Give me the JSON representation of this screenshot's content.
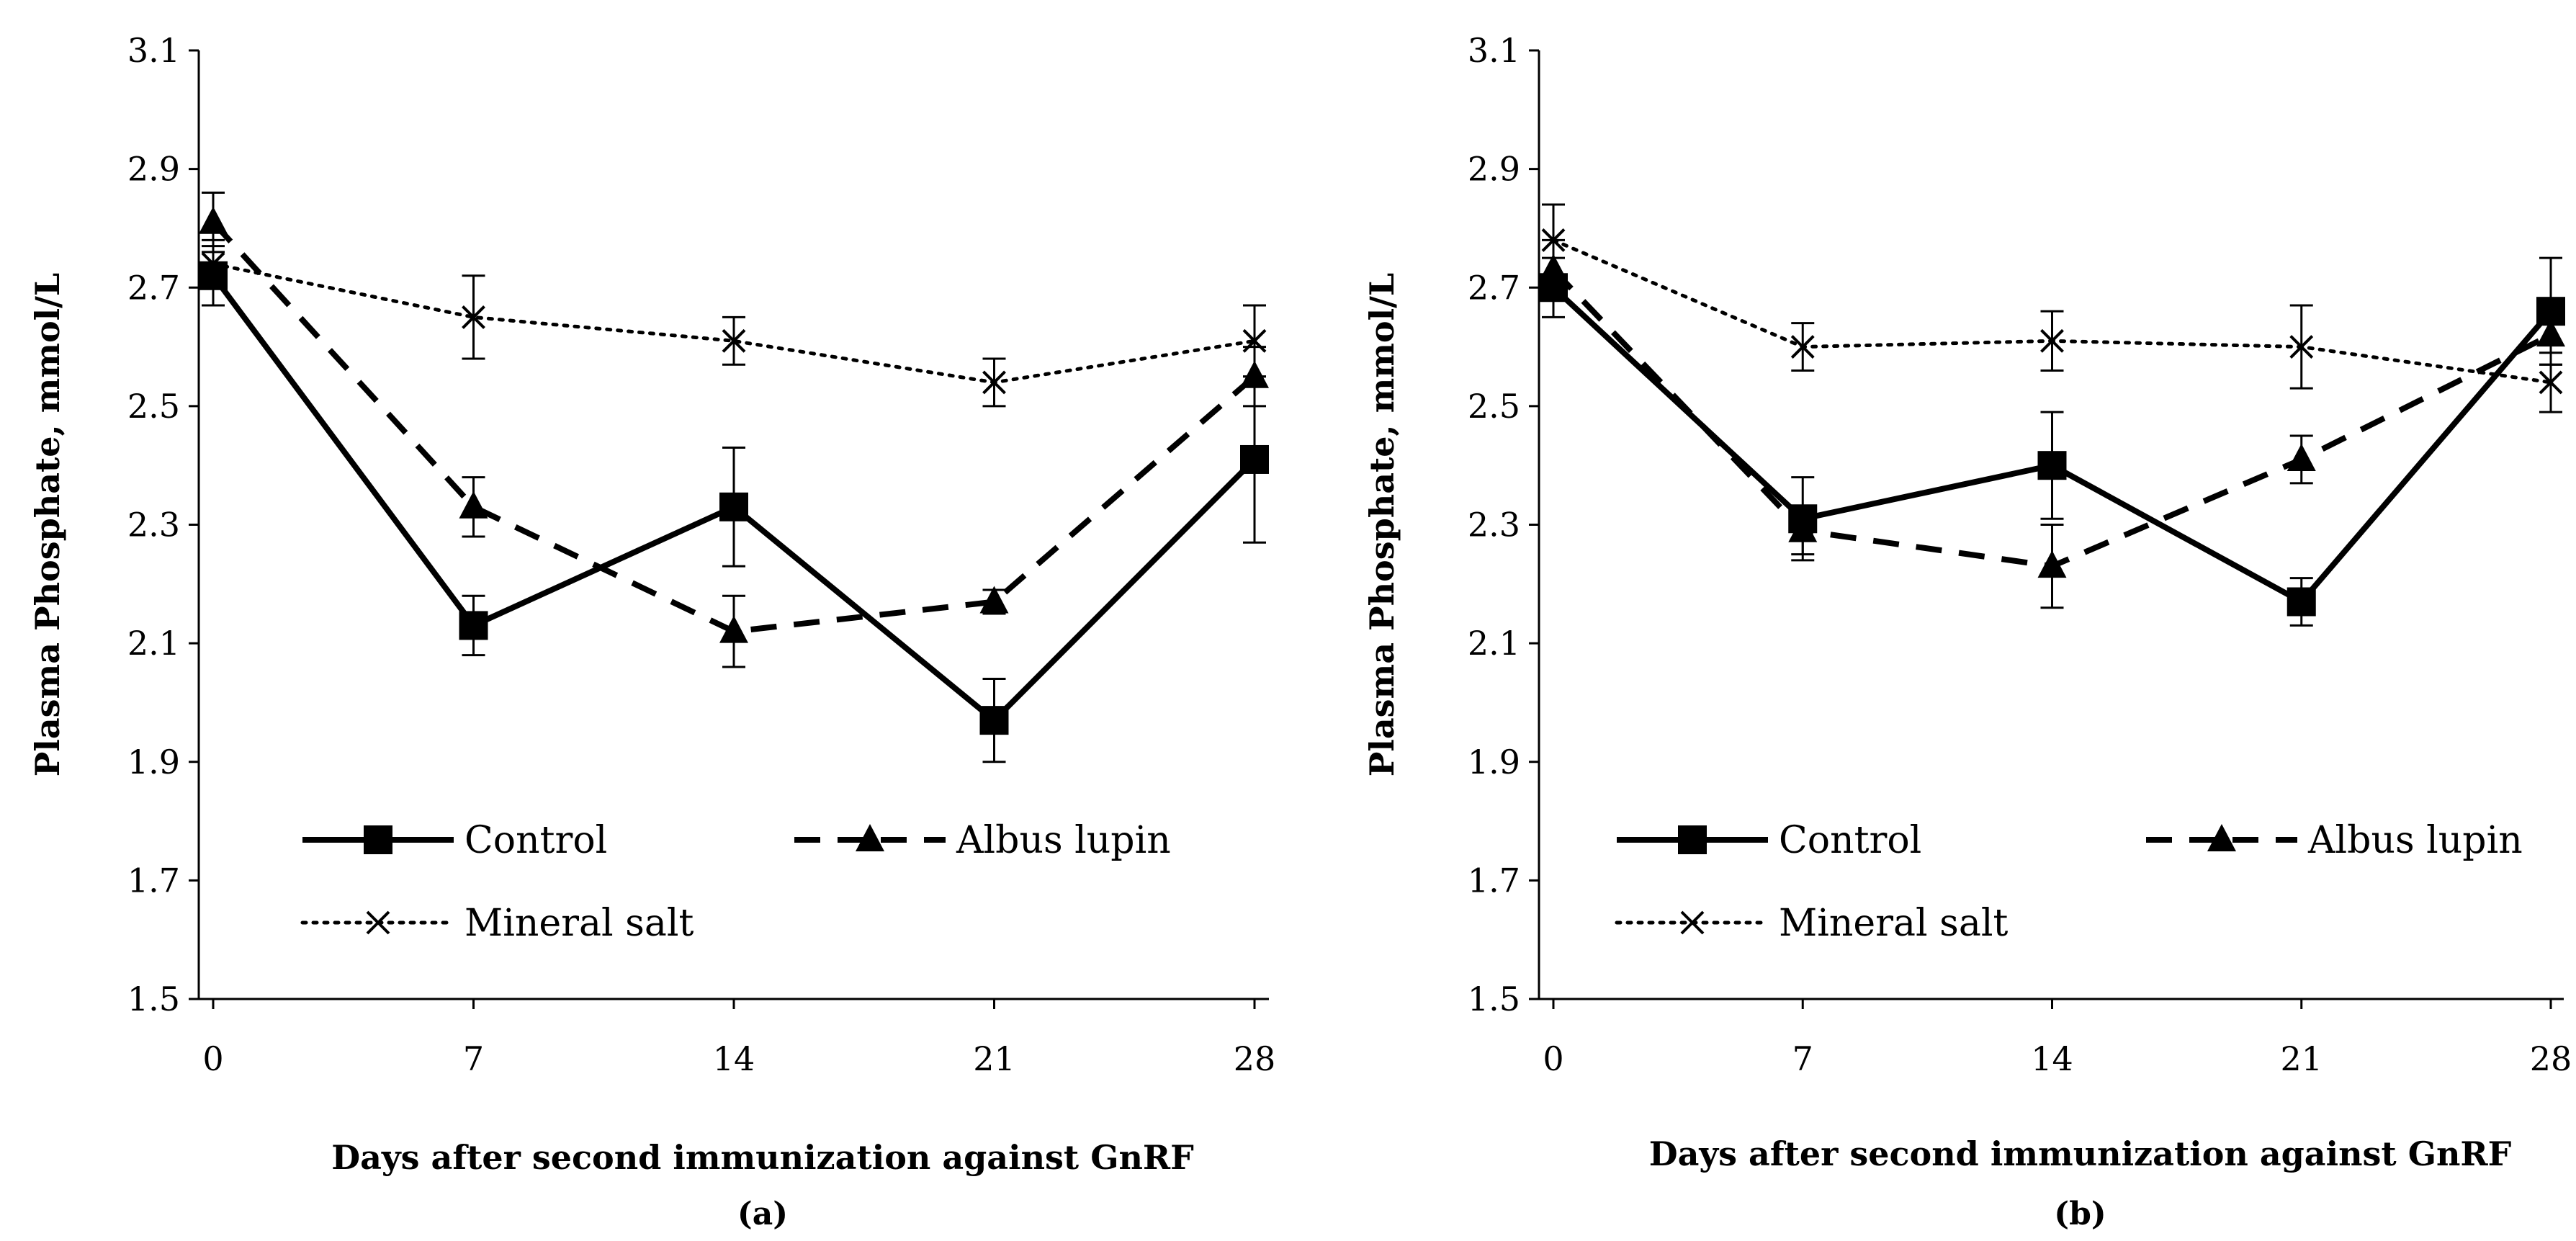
{
  "chart_data": [
    {
      "type": "line",
      "panel_label": "(a)",
      "xlabel": "Days after second immunization against GnRF",
      "ylabel": "Plasma Phosphate, mmol/L",
      "x": [
        0,
        7,
        14,
        21,
        28
      ],
      "x_tick_labels": [
        "0",
        "7",
        "14",
        "21",
        "28"
      ],
      "ylim": [
        1.5,
        3.1
      ],
      "y_ticks": [
        1.5,
        1.7,
        1.9,
        2.1,
        2.3,
        2.5,
        2.7,
        2.9,
        3.1
      ],
      "y_tick_labels": [
        "1.5",
        "1.7",
        "1.9",
        "2.1",
        "2.3",
        "2.5",
        "2.7",
        "2.9",
        "3.1"
      ],
      "series": [
        {
          "name": "Control",
          "style": "solid",
          "marker": "square",
          "values": [
            2.72,
            2.13,
            2.33,
            1.97,
            2.41
          ],
          "errors": [
            0.05,
            0.05,
            0.1,
            0.07,
            0.14
          ]
        },
        {
          "name": "Albus lupin",
          "style": "dashed",
          "marker": "triangle",
          "values": [
            2.81,
            2.33,
            2.12,
            2.17,
            2.55
          ],
          "errors": [
            0.05,
            0.05,
            0.06,
            0.02,
            0.05
          ]
        },
        {
          "name": "Mineral salt",
          "style": "dotted",
          "marker": "x",
          "values": [
            2.74,
            2.65,
            2.61,
            2.54,
            2.61
          ],
          "errors": [
            0.04,
            0.07,
            0.04,
            0.04,
            0.06
          ]
        }
      ]
    },
    {
      "type": "line",
      "panel_label": "(b)",
      "xlabel": "Days after second immunization against GnRF",
      "ylabel": "Plasma Phosphate, mmol/L",
      "x": [
        0,
        7,
        14,
        21,
        28
      ],
      "x_tick_labels": [
        "0",
        "7",
        "14",
        "21",
        "28"
      ],
      "ylim": [
        1.5,
        3.1
      ],
      "y_ticks": [
        1.5,
        1.7,
        1.9,
        2.1,
        2.3,
        2.5,
        2.7,
        2.9,
        3.1
      ],
      "y_tick_labels": [
        "1.5",
        "1.7",
        "1.9",
        "2.1",
        "2.3",
        "2.5",
        "2.7",
        "2.9",
        "3.1"
      ],
      "series": [
        {
          "name": "Control",
          "style": "solid",
          "marker": "square",
          "values": [
            2.7,
            2.31,
            2.4,
            2.17,
            2.66
          ],
          "errors": [
            0.05,
            0.07,
            0.09,
            0.04,
            0.09
          ]
        },
        {
          "name": "Albus lupin",
          "style": "dashed",
          "marker": "triangle",
          "values": [
            2.73,
            2.29,
            2.23,
            2.41,
            2.62
          ],
          "errors": [
            0.05,
            0.04,
            0.07,
            0.04,
            0.05
          ]
        },
        {
          "name": "Mineral salt",
          "style": "dotted",
          "marker": "x",
          "values": [
            2.78,
            2.6,
            2.61,
            2.6,
            2.54
          ],
          "errors": [
            0.06,
            0.04,
            0.05,
            0.07,
            0.05
          ]
        }
      ]
    }
  ]
}
